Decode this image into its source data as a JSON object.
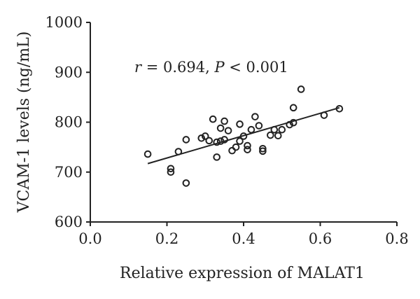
{
  "chart_data": {
    "type": "scatter",
    "xlabel": "Relative expression of MALAT1",
    "ylabel": "VCAM-1 levels (ng/mL)",
    "xlim": [
      0.0,
      0.8
    ],
    "ylim": [
      600,
      1000
    ],
    "xticks": [
      "0.0",
      "0.2",
      "0.4",
      "0.6",
      "0.8"
    ],
    "yticks": [
      "600",
      "700",
      "800",
      "900",
      "1000"
    ],
    "grid": false,
    "annotation": {
      "r_symbol": "r",
      "r_text": " = 0.694, ",
      "p_symbol": "P",
      "p_text": " < 0.001"
    },
    "trendline": {
      "x": [
        0.15,
        0.65
      ],
      "y": [
        717,
        829
      ]
    },
    "points": [
      {
        "x": 0.15,
        "y": 736
      },
      {
        "x": 0.21,
        "y": 707
      },
      {
        "x": 0.21,
        "y": 700
      },
      {
        "x": 0.23,
        "y": 741
      },
      {
        "x": 0.25,
        "y": 765
      },
      {
        "x": 0.25,
        "y": 678
      },
      {
        "x": 0.29,
        "y": 768
      },
      {
        "x": 0.3,
        "y": 772
      },
      {
        "x": 0.31,
        "y": 763
      },
      {
        "x": 0.32,
        "y": 806
      },
      {
        "x": 0.33,
        "y": 730
      },
      {
        "x": 0.33,
        "y": 760
      },
      {
        "x": 0.34,
        "y": 762
      },
      {
        "x": 0.34,
        "y": 788
      },
      {
        "x": 0.35,
        "y": 802
      },
      {
        "x": 0.35,
        "y": 765
      },
      {
        "x": 0.36,
        "y": 783
      },
      {
        "x": 0.37,
        "y": 743
      },
      {
        "x": 0.38,
        "y": 750
      },
      {
        "x": 0.39,
        "y": 762
      },
      {
        "x": 0.39,
        "y": 796
      },
      {
        "x": 0.4,
        "y": 772
      },
      {
        "x": 0.41,
        "y": 753
      },
      {
        "x": 0.41,
        "y": 745
      },
      {
        "x": 0.42,
        "y": 785
      },
      {
        "x": 0.43,
        "y": 811
      },
      {
        "x": 0.44,
        "y": 793
      },
      {
        "x": 0.45,
        "y": 747
      },
      {
        "x": 0.45,
        "y": 742
      },
      {
        "x": 0.47,
        "y": 774
      },
      {
        "x": 0.48,
        "y": 785
      },
      {
        "x": 0.49,
        "y": 773
      },
      {
        "x": 0.5,
        "y": 785
      },
      {
        "x": 0.52,
        "y": 795
      },
      {
        "x": 0.53,
        "y": 829
      },
      {
        "x": 0.53,
        "y": 799
      },
      {
        "x": 0.55,
        "y": 866
      },
      {
        "x": 0.61,
        "y": 814
      },
      {
        "x": 0.65,
        "y": 827
      }
    ]
  }
}
